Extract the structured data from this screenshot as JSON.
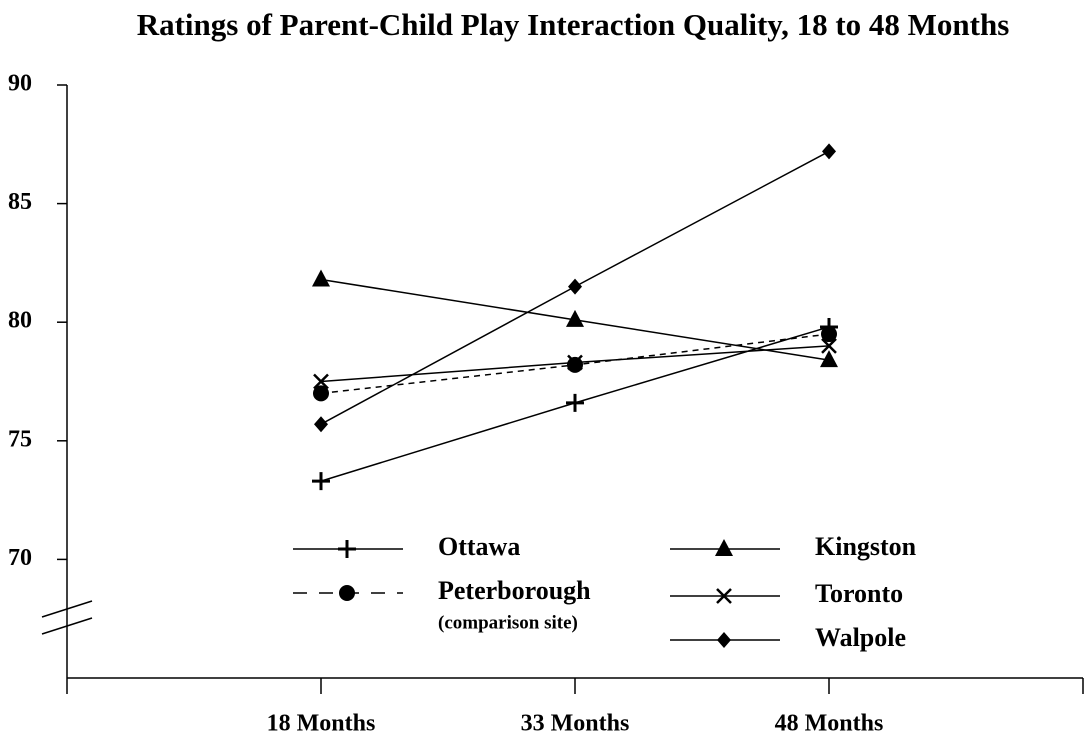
{
  "chart_data": {
    "type": "line",
    "title": "Ratings of Parent-Child Play Interaction Quality, 18 to 48 Months",
    "categories": [
      "18 Months",
      "33 Months",
      "48 Months"
    ],
    "ylim": [
      65,
      90
    ],
    "yticks": [
      70,
      75,
      80,
      85,
      90
    ],
    "axis_break": true,
    "series": [
      {
        "name": "Ottawa",
        "color": "#000000",
        "marker": "plus",
        "dash": false,
        "values": [
          73.3,
          76.6,
          79.8
        ]
      },
      {
        "name": "Peterborough",
        "legend_note": "(comparison site)",
        "color": "#000000",
        "marker": "circle",
        "dash": true,
        "values": [
          77.0,
          78.2,
          79.5
        ]
      },
      {
        "name": "Kingston",
        "color": "#000000",
        "marker": "triangle",
        "dash": false,
        "values": [
          81.8,
          80.1,
          78.4
        ]
      },
      {
        "name": "Toronto",
        "color": "#000000",
        "marker": "x",
        "dash": false,
        "values": [
          77.5,
          78.3,
          79.0
        ]
      },
      {
        "name": "Walpole",
        "color": "#000000",
        "marker": "diamond",
        "dash": false,
        "values": [
          75.7,
          81.5,
          87.2
        ]
      }
    ]
  }
}
